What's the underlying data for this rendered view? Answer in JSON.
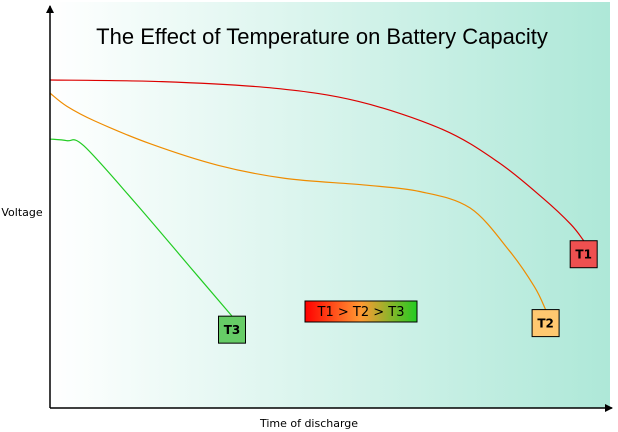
{
  "chart_data": {
    "type": "line",
    "title": "The Effect of Temperature on Battery Capacity",
    "xlabel": "Time of discharge",
    "ylabel": "Voltage",
    "xlim": [
      0,
      100
    ],
    "ylim": [
      0,
      100
    ],
    "grid": false,
    "legend": {
      "text": "T1 > T2 > T3",
      "placement": "center"
    },
    "background_colors": [
      "#ffffff",
      "#aee8d8"
    ],
    "series": [
      {
        "name": "T1",
        "color": "#dd0000",
        "label_bg": "#ee5050",
        "x": [
          0,
          20,
          40,
          55,
          70,
          80,
          88,
          93,
          95.3
        ],
        "y": [
          100,
          99.5,
          97.5,
          93.5,
          85,
          75,
          64,
          56,
          51
        ]
      },
      {
        "name": "T2",
        "color": "#ef8c00",
        "label_bg": "#ffc870",
        "x": [
          0,
          3,
          8,
          18,
          30,
          42,
          56,
          66,
          75,
          82,
          86.5,
          88.5
        ],
        "y": [
          96,
          92,
          87.5,
          80.5,
          74,
          70,
          68,
          66,
          61,
          48,
          37,
          30
        ]
      },
      {
        "name": "T3",
        "color": "#22cc22",
        "label_bg": "#66cc66",
        "x": [
          0,
          3,
          6,
          15,
          25,
          32.5
        ],
        "y": [
          82,
          81.5,
          80,
          63,
          43,
          28
        ]
      }
    ]
  }
}
